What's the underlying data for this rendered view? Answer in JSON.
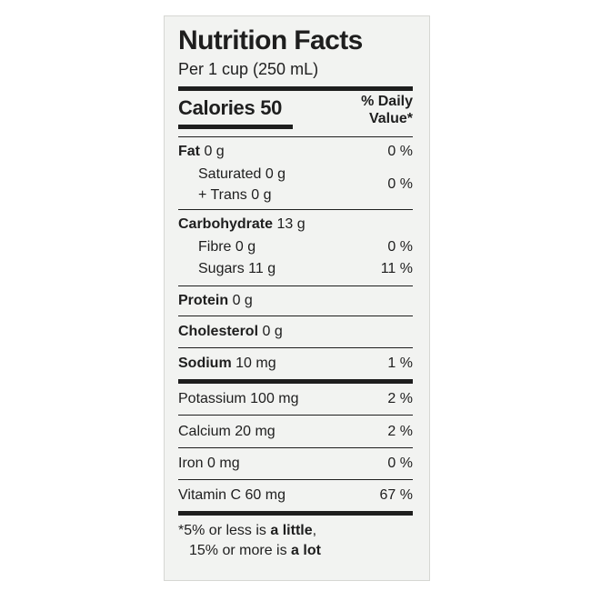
{
  "title": "Nutrition Facts",
  "serving": "Per 1 cup (250 mL)",
  "calories": {
    "label": "Calories",
    "value": "50"
  },
  "dv_header": {
    "line1": "% Daily",
    "line2": "Value*"
  },
  "fat": {
    "label": "Fat",
    "amount": "0 g",
    "dv": "0 %"
  },
  "saturated": {
    "label": "Saturated 0 g"
  },
  "trans": {
    "label": "+ Trans 0 g"
  },
  "sat_trans_dv": "0 %",
  "carbohydrate": {
    "label": "Carbohydrate",
    "amount": "13 g"
  },
  "fibre": {
    "label": "Fibre 0 g",
    "dv": "0 %"
  },
  "sugars": {
    "label": "Sugars 11 g",
    "dv": "11 %"
  },
  "protein": {
    "label": "Protein",
    "amount": "0 g"
  },
  "cholesterol": {
    "label": "Cholesterol",
    "amount": "0 g"
  },
  "sodium": {
    "label": "Sodium",
    "amount": "10 mg",
    "dv": "1 %"
  },
  "potassium": {
    "label": "Potassium 100 mg",
    "dv": "2 %"
  },
  "calcium": {
    "label": "Calcium 20 mg",
    "dv": "2 %"
  },
  "iron": {
    "label": "Iron 0 mg",
    "dv": "0 %"
  },
  "vitamin_c": {
    "label": "Vitamin C 60 mg",
    "dv": "67 %"
  },
  "footnote": {
    "line1_pre": "*5% or less is ",
    "line1_bold": "a little",
    "line1_post": ",",
    "line2_pre": "15% or more is ",
    "line2_bold": "a lot"
  }
}
